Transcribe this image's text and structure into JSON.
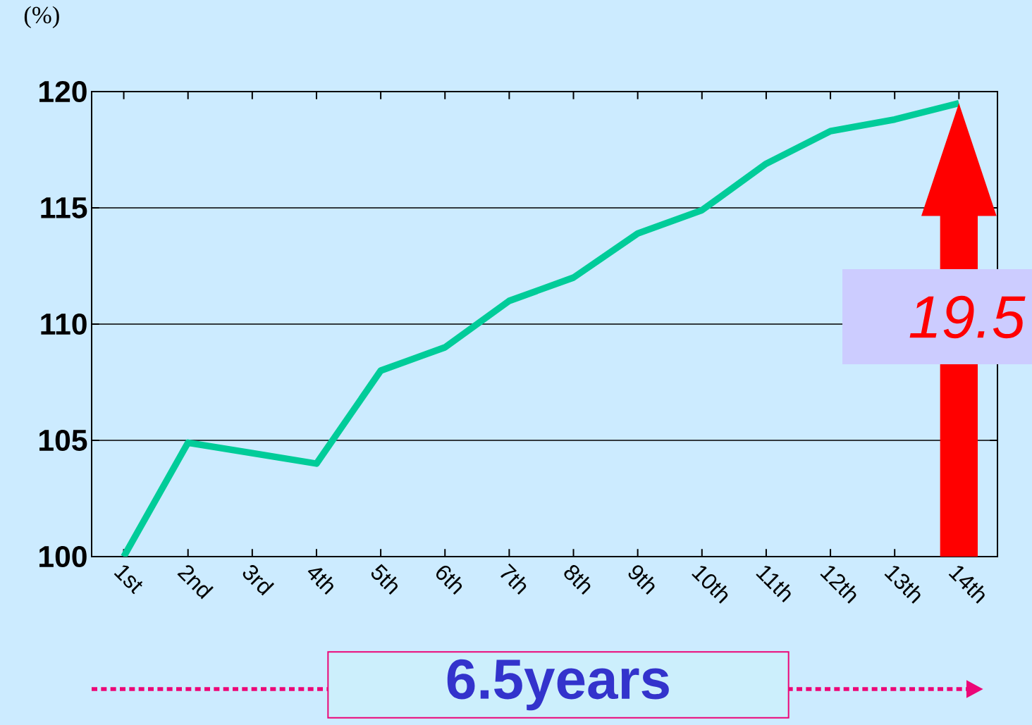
{
  "chart_data": {
    "type": "line",
    "ylabel": "(%)",
    "categories": [
      "1st",
      "2nd",
      "3rd",
      "4th",
      "5th",
      "6th",
      "7th",
      "8th",
      "9th",
      "10th",
      "11th",
      "12th",
      "13th",
      "14th"
    ],
    "values": [
      100,
      104.9,
      104.45,
      104,
      108,
      109,
      111,
      112,
      113.9,
      114.9,
      116.9,
      118.3,
      118.8,
      119.5
    ],
    "color": "#00cc99",
    "ylim": [
      100,
      120
    ],
    "yticks": [
      100,
      105,
      110,
      115,
      120
    ],
    "grid": "y",
    "marker": "none",
    "line_style": "solid",
    "annotations": [
      "19.5",
      "6.5years"
    ]
  }
}
